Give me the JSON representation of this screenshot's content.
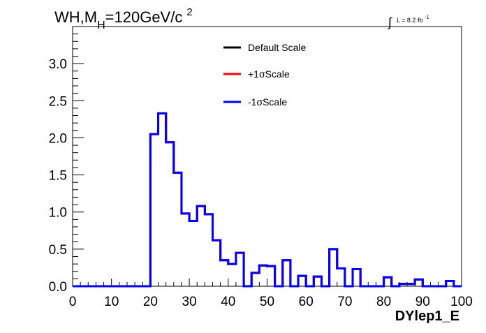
{
  "chart_data": {
    "type": "histogram",
    "title_main": "WH,M",
    "title_sub": "H",
    "title_rest": "=120GeV/c",
    "title_sup": "2",
    "lumi_integral": "∫",
    "lumi_text": "L = 8.2 fb",
    "lumi_sup": "-1",
    "xlabel": "DYlep1_E",
    "ylabel": "",
    "xlim": [
      0,
      100
    ],
    "ylim": [
      0,
      3.5
    ],
    "x_tick_labels": [
      "0",
      "10",
      "20",
      "30",
      "40",
      "50",
      "60",
      "70",
      "80",
      "90",
      "100"
    ],
    "y_tick_labels": [
      "0.0",
      "0.5",
      "1.0",
      "1.5",
      "2.0",
      "2.5",
      "3.0"
    ],
    "bin_width": 2,
    "bin_edges_start": 0,
    "legend_position": "top-center",
    "series": [
      {
        "name": "Default Scale",
        "color": "#000000",
        "values": [
          0,
          0,
          0,
          0,
          0,
          0,
          0,
          0,
          0,
          0,
          2.05,
          2.33,
          1.94,
          1.53,
          0.98,
          0.88,
          1.08,
          0.97,
          0.62,
          0.35,
          0.3,
          0.45,
          0,
          0.18,
          0.28,
          0.27,
          0,
          0.35,
          0,
          0.14,
          0,
          0.13,
          0,
          0.5,
          0.24,
          0,
          0.23,
          0,
          0,
          0,
          0.12,
          0,
          0.03,
          0.03,
          0.09,
          0,
          0,
          0,
          0.07,
          0
        ]
      },
      {
        "name": "+1σScale",
        "color": "#ff0000",
        "values": [
          0,
          0,
          0,
          0,
          0,
          0,
          0,
          0,
          0,
          0,
          2.05,
          2.33,
          1.94,
          1.53,
          0.98,
          0.88,
          1.08,
          0.97,
          0.62,
          0.35,
          0.3,
          0.45,
          0,
          0.18,
          0.28,
          0.27,
          0,
          0.35,
          0,
          0.14,
          0,
          0.13,
          0,
          0.5,
          0.24,
          0,
          0.23,
          0,
          0,
          0,
          0.12,
          0,
          0.03,
          0.03,
          0.09,
          0,
          0,
          0,
          0.07,
          0
        ]
      },
      {
        "name": "-1σScale",
        "color": "#0000ff",
        "values": [
          0,
          0,
          0,
          0,
          0,
          0,
          0,
          0,
          0,
          0,
          2.05,
          2.33,
          1.94,
          1.53,
          0.98,
          0.88,
          1.08,
          0.97,
          0.62,
          0.35,
          0.3,
          0.45,
          0,
          0.18,
          0.28,
          0.27,
          0,
          0.35,
          0,
          0.14,
          0,
          0.13,
          0,
          0.5,
          0.24,
          0,
          0.23,
          0,
          0,
          0,
          0.12,
          0,
          0.03,
          0.03,
          0.09,
          0,
          0,
          0,
          0.07,
          0
        ]
      }
    ],
    "grid": false
  }
}
